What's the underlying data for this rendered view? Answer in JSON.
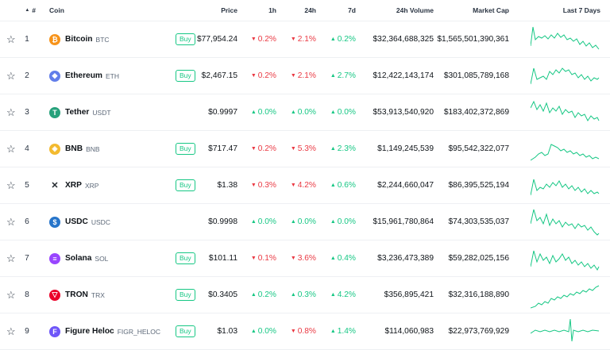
{
  "header": {
    "rank": "#",
    "coin": "Coin",
    "price": "Price",
    "h1": "1h",
    "h24": "24h",
    "d7": "7d",
    "volume": "24h Volume",
    "mcap": "Market Cap",
    "spark": "Last 7 Days"
  },
  "buy_label": "Buy",
  "rows": [
    {
      "rank": "1",
      "name": "Bitcoin",
      "sym": "BTC",
      "icon": "bitcoin-icon",
      "icon_color": "#f7931a",
      "icon_glyph": "₿",
      "buy": true,
      "price": "$77,954.24",
      "h1": "0.2%",
      "h1_dir": "down",
      "h24": "2.1%",
      "h24_dir": "down",
      "d7": "0.2%",
      "d7_dir": "up",
      "volume": "$32,364,688,325",
      "mcap": "$1,565,501,390,361"
    },
    {
      "rank": "2",
      "name": "Ethereum",
      "sym": "ETH",
      "icon": "ethereum-icon",
      "icon_color": "#627eea",
      "icon_glyph": "◆",
      "buy": true,
      "price": "$2,467.15",
      "h1": "0.2%",
      "h1_dir": "down",
      "h24": "2.1%",
      "h24_dir": "down",
      "d7": "2.7%",
      "d7_dir": "up",
      "volume": "$12,422,143,174",
      "mcap": "$301,085,789,168"
    },
    {
      "rank": "3",
      "name": "Tether",
      "sym": "USDT",
      "icon": "tether-icon",
      "icon_color": "#26a17b",
      "icon_glyph": "T",
      "buy": false,
      "price": "$0.9997",
      "h1": "0.0%",
      "h1_dir": "up",
      "h24": "0.0%",
      "h24_dir": "up",
      "d7": "0.0%",
      "d7_dir": "up",
      "volume": "$53,913,540,920",
      "mcap": "$183,402,372,869"
    },
    {
      "rank": "4",
      "name": "BNB",
      "sym": "BNB",
      "icon": "bnb-icon",
      "icon_color": "#f3ba2f",
      "icon_glyph": "◈",
      "buy": true,
      "price": "$717.47",
      "h1": "0.2%",
      "h1_dir": "down",
      "h24": "5.3%",
      "h24_dir": "down",
      "d7": "2.3%",
      "d7_dir": "up",
      "volume": "$1,149,245,539",
      "mcap": "$95,542,322,077"
    },
    {
      "rank": "5",
      "name": "XRP",
      "sym": "XRP",
      "icon": "xrp-icon",
      "icon_color": "#ffffff",
      "icon_glyph": "✕",
      "buy": true,
      "price": "$1.38",
      "h1": "0.3%",
      "h1_dir": "down",
      "h24": "4.2%",
      "h24_dir": "down",
      "d7": "0.6%",
      "d7_dir": "up",
      "volume": "$2,244,660,047",
      "mcap": "$86,395,525,194"
    },
    {
      "rank": "6",
      "name": "USDC",
      "sym": "USDC",
      "icon": "usdc-icon",
      "icon_color": "#2775ca",
      "icon_glyph": "$",
      "buy": false,
      "price": "$0.9998",
      "h1": "0.0%",
      "h1_dir": "up",
      "h24": "0.0%",
      "h24_dir": "up",
      "d7": "0.0%",
      "d7_dir": "up",
      "volume": "$15,961,780,864",
      "mcap": "$74,303,535,037"
    },
    {
      "rank": "7",
      "name": "Solana",
      "sym": "SOL",
      "icon": "solana-icon",
      "icon_color": "#9945ff",
      "icon_glyph": "≡",
      "buy": true,
      "price": "$101.11",
      "h1": "0.1%",
      "h1_dir": "down",
      "h24": "3.6%",
      "h24_dir": "down",
      "d7": "0.4%",
      "d7_dir": "up",
      "volume": "$3,236,473,389",
      "mcap": "$59,282,025,156"
    },
    {
      "rank": "8",
      "name": "TRON",
      "sym": "TRX",
      "icon": "tron-icon",
      "icon_color": "#eb0029",
      "icon_glyph": "▽",
      "buy": true,
      "price": "$0.3405",
      "h1": "0.2%",
      "h1_dir": "up",
      "h24": "0.3%",
      "h24_dir": "up",
      "d7": "4.2%",
      "d7_dir": "up",
      "volume": "$356,895,421",
      "mcap": "$32,316,188,890"
    },
    {
      "rank": "9",
      "name": "Figure Heloc",
      "sym": "FIGR_HELOC",
      "icon": "figure-heloc-icon",
      "icon_color": "#6e56f8",
      "icon_glyph": "F",
      "buy": true,
      "price": "$1.03",
      "h1": "0.0%",
      "h1_dir": "up",
      "h24": "0.8%",
      "h24_dir": "down",
      "d7": "1.4%",
      "d7_dir": "up",
      "volume": "$114,060,983",
      "mcap": "$22,973,769,929"
    }
  ],
  "colors": {
    "up": "#16c784",
    "down": "#ea3943",
    "spark": "#16c784"
  }
}
